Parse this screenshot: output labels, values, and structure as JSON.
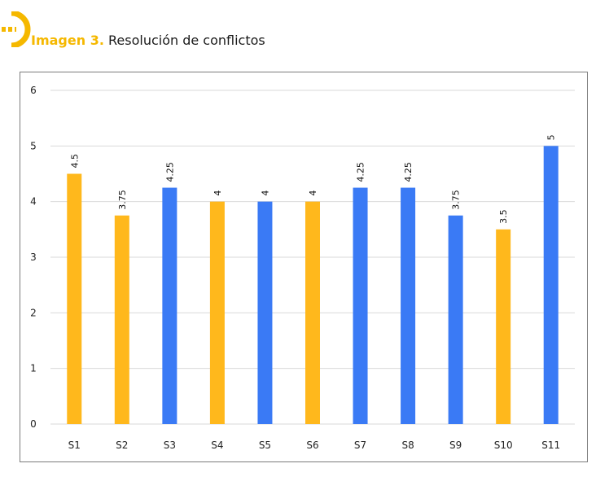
{
  "caption": {
    "label": "Imagen 3.",
    "title": "Resolución de conflictos"
  },
  "logo": {
    "icon": "yellow-half-circle-logo-icon",
    "color": "#f5b800"
  },
  "chart_data": {
    "type": "bar",
    "categories": [
      "S1",
      "S2",
      "S3",
      "S4",
      "S5",
      "S6",
      "S7",
      "S8",
      "S9",
      "S10",
      "S11"
    ],
    "values": [
      4.5,
      3.75,
      4.25,
      4,
      4,
      4,
      4.25,
      4.25,
      3.75,
      3.5,
      5
    ],
    "value_labels": [
      "4.5",
      "3.75",
      "4.25",
      "4",
      "4",
      "4",
      "4.25",
      "4.25",
      "3.75",
      "3.5",
      "5"
    ],
    "bar_colors": [
      "#ffb81c",
      "#ffb81c",
      "#3a7af5",
      "#ffb81c",
      "#3a7af5",
      "#ffb81c",
      "#3a7af5",
      "#3a7af5",
      "#3a7af5",
      "#ffb81c",
      "#3a7af5"
    ],
    "ylim": [
      0,
      6
    ],
    "yticks": [
      "0",
      "1",
      "2",
      "3",
      "4",
      "5",
      "6"
    ],
    "grid": true,
    "legend": "none"
  }
}
